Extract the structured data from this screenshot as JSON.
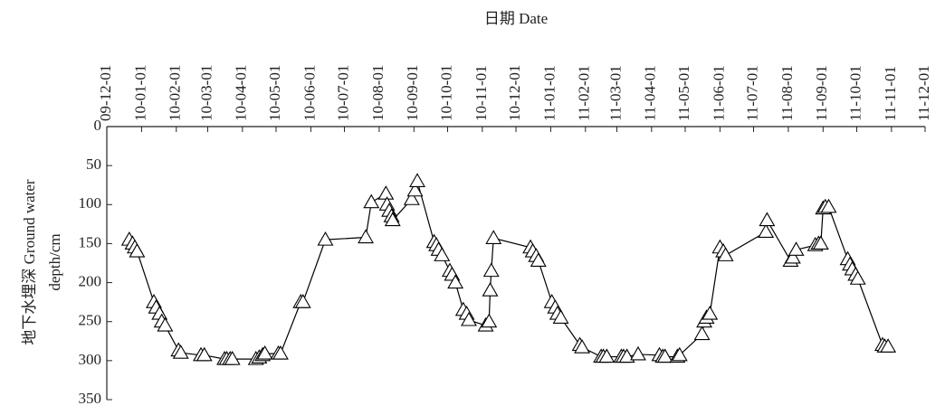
{
  "chart_data": {
    "type": "line",
    "xlabel": "日期 Date",
    "ylabel": [
      "地下水埋深 Ground water",
      "depth/cm"
    ],
    "x": [
      "09-12-21",
      "09-12-24",
      "09-12-26",
      "09-12-28",
      "10-01-12",
      "10-01-14",
      "10-01-17",
      "10-01-19",
      "10-01-22",
      "10-02-03",
      "10-02-05",
      "10-02-23",
      "10-02-26",
      "10-03-16",
      "10-03-18",
      "10-03-21",
      "10-03-23",
      "10-04-13",
      "10-04-16",
      "10-04-19",
      "10-04-21",
      "10-05-03",
      "10-05-05",
      "10-05-23",
      "10-05-25",
      "10-06-14",
      "10-07-20",
      "10-07-25",
      "10-08-07",
      "10-08-08",
      "10-08-10",
      "10-08-12",
      "10-08-13",
      "10-08-30",
      "10-09-02",
      "10-09-04",
      "10-09-19",
      "10-09-21",
      "10-09-23",
      "10-09-26",
      "10-10-03",
      "10-10-05",
      "10-10-08",
      "10-10-15",
      "10-10-18",
      "10-10-20",
      "10-11-04",
      "10-11-07",
      "10-11-08",
      "10-11-09",
      "10-11-11",
      "10-12-14",
      "10-12-16",
      "10-12-19",
      "10-12-21",
      "11-01-02",
      "11-01-05",
      "11-01-07",
      "11-01-10",
      "11-01-27",
      "11-01-29",
      "11-02-15",
      "11-02-17",
      "11-02-20",
      "11-03-05",
      "11-03-07",
      "11-03-10",
      "11-03-20",
      "11-04-08",
      "11-04-11",
      "11-04-13",
      "11-04-24",
      "11-04-26",
      "11-05-16",
      "11-05-18",
      "11-05-20",
      "11-05-23",
      "11-06-01",
      "11-06-04",
      "11-06-06",
      "11-07-12",
      "11-07-13",
      "11-08-03",
      "11-08-05",
      "11-08-08",
      "11-08-25",
      "11-08-28",
      "11-08-30",
      "11-09-01",
      "11-09-03",
      "11-09-06",
      "11-09-23",
      "11-09-25",
      "11-09-27",
      "11-09-30",
      "11-10-02",
      "11-10-24",
      "11-10-26",
      "11-10-29"
    ],
    "series": [
      {
        "color": "#000000",
        "values": [
          145,
          150,
          155,
          160,
          225,
          232,
          240,
          250,
          255,
          287,
          290,
          293,
          293,
          298,
          298,
          298,
          298,
          298,
          296,
          293,
          291,
          291,
          291,
          225,
          225,
          145,
          142,
          97,
          86,
          100,
          108,
          115,
          120,
          93,
          82,
          70,
          148,
          152,
          158,
          165,
          185,
          190,
          200,
          235,
          240,
          248,
          255,
          250,
          210,
          185,
          143,
          155,
          160,
          166,
          172,
          225,
          232,
          240,
          245,
          280,
          283,
          295,
          295,
          295,
          295,
          295,
          295,
          292,
          293,
          295,
          295,
          295,
          293,
          266,
          250,
          245,
          240,
          155,
          160,
          165,
          135,
          120,
          172,
          168,
          158,
          152,
          150,
          150,
          105,
          103,
          103,
          170,
          177,
          183,
          190,
          195,
          280,
          282,
          282
        ]
      }
    ],
    "xlim": [
      "09-12-01",
      "11-12-01"
    ],
    "xticks": [
      "09-12-01",
      "10-01-01",
      "10-02-01",
      "10-03-01",
      "10-04-01",
      "10-05-01",
      "10-06-01",
      "10-07-01",
      "10-08-01",
      "10-09-01",
      "10-10-01",
      "10-11-01",
      "10-12-01",
      "11-01-01",
      "11-02-01",
      "11-03-01",
      "11-04-01",
      "11-05-01",
      "11-06-01",
      "11-07-01",
      "11-08-01",
      "11-09-01",
      "11-10-01",
      "11-11-01",
      "11-12-01"
    ],
    "ylim": [
      0,
      350
    ],
    "yticks": [
      0,
      50,
      100,
      150,
      200,
      250,
      300,
      350
    ],
    "y_inverted": true,
    "marker": "triangle"
  }
}
